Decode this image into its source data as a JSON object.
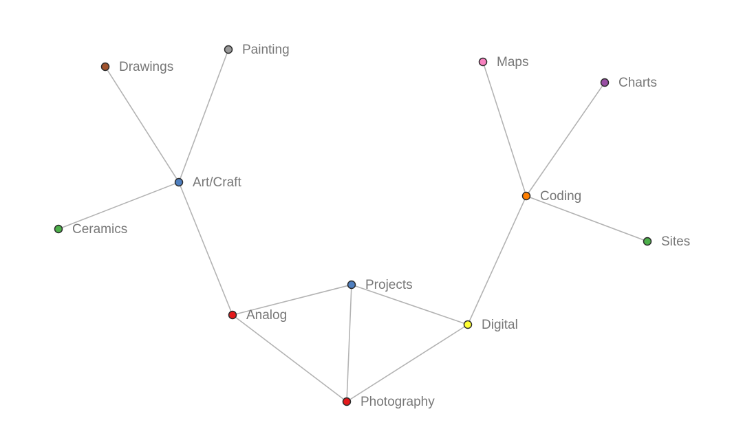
{
  "nodes": [
    {
      "id": "drawings",
      "label": "Drawings",
      "color": "#a0522d"
    },
    {
      "id": "painting",
      "label": "Painting",
      "color": "#999999"
    },
    {
      "id": "art_craft",
      "label": "Art/Craft",
      "color": "#4f7fbf"
    },
    {
      "id": "ceramics",
      "label": "Ceramics",
      "color": "#4daf4a"
    },
    {
      "id": "analog",
      "label": "Analog",
      "color": "#e41a1c"
    },
    {
      "id": "projects",
      "label": "Projects",
      "color": "#4f7fbf"
    },
    {
      "id": "photography",
      "label": "Photography",
      "color": "#e41a1c"
    },
    {
      "id": "digital",
      "label": "Digital",
      "color": "#ffff33"
    },
    {
      "id": "coding",
      "label": "Coding",
      "color": "#ff7f00"
    },
    {
      "id": "maps",
      "label": "Maps",
      "color": "#f781bf"
    },
    {
      "id": "charts",
      "label": "Charts",
      "color": "#984ea3"
    },
    {
      "id": "sites",
      "label": "Sites",
      "color": "#4daf4a"
    }
  ],
  "edges": [
    [
      "drawings",
      "art_craft"
    ],
    [
      "painting",
      "art_craft"
    ],
    [
      "ceramics",
      "art_craft"
    ],
    [
      "art_craft",
      "analog"
    ],
    [
      "analog",
      "projects"
    ],
    [
      "analog",
      "photography"
    ],
    [
      "projects",
      "photography"
    ],
    [
      "projects",
      "digital"
    ],
    [
      "photography",
      "digital"
    ],
    [
      "digital",
      "coding"
    ],
    [
      "coding",
      "maps"
    ],
    [
      "coding",
      "charts"
    ],
    [
      "coding",
      "sites"
    ]
  ]
}
